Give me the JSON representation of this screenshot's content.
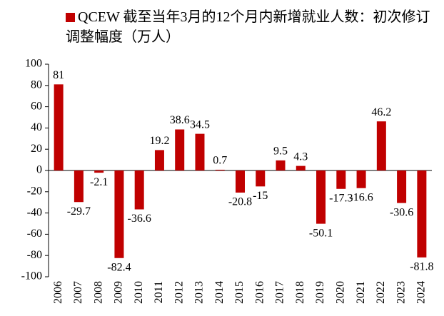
{
  "chart_data": {
    "type": "bar",
    "categories": [
      "2006",
      "2007",
      "2008",
      "2009",
      "2010",
      "2011",
      "2012",
      "2013",
      "2014",
      "2015",
      "2016",
      "2017",
      "2018",
      "2019",
      "2020",
      "2021",
      "2022",
      "2023",
      "2024"
    ],
    "series": [
      {
        "name": "QCEW 截至当年3月的12个月内新增就业人数：初次修订调整幅度（万人）",
        "color": "#c00000",
        "values": [
          81,
          -29.7,
          -2.1,
          -82.4,
          -36.6,
          19.2,
          38.6,
          34.5,
          0.7,
          -20.8,
          -15,
          9.5,
          4.3,
          -50.1,
          -17.3,
          -16.6,
          46.2,
          -30.6,
          -81.8
        ]
      }
    ],
    "ylim": [
      -100,
      100
    ],
    "yticks": [
      -100,
      -80,
      -60,
      -40,
      -20,
      0,
      20,
      40,
      60,
      80,
      100
    ],
    "grid": false,
    "legend": "top"
  }
}
